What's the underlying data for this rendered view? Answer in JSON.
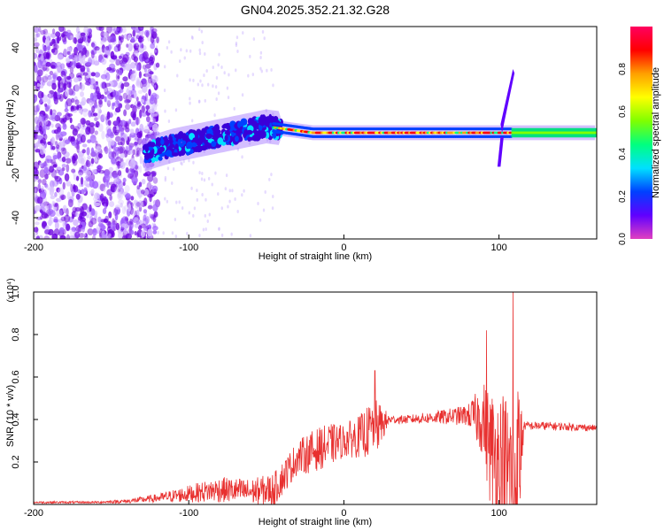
{
  "title": "GN04.2025.352.21.32.G28",
  "colors": {
    "snr_line": "#e8302f",
    "colorbar_stops": [
      "#e040c0",
      "#6000ff",
      "#0040ff",
      "#00e0ff",
      "#00ff80",
      "#80ff00",
      "#ffff00",
      "#ffa000",
      "#ff0000",
      "#ff0060"
    ]
  },
  "chart_data": [
    {
      "type": "heatmap",
      "name": "spectrogram",
      "title": "GN04.2025.352.21.32.G28",
      "xlabel": "Height of straight line (km)",
      "ylabel": "Frequency (Hz)",
      "xlim": [
        -200,
        163
      ],
      "ylim": [
        -50,
        50
      ],
      "xticks": [
        "-200",
        "-100",
        "0",
        "100"
      ],
      "yticks": [
        "-40",
        "-20",
        "0",
        "20",
        "40"
      ],
      "colorbar": {
        "label": "Normalized spectral amplitude",
        "range": [
          0,
          1
        ],
        "ticks": [
          "0.0",
          "0.2",
          "0.4",
          "0.6",
          "0.8"
        ]
      },
      "ridge": {
        "x": [
          -128,
          -110,
          -90,
          -70,
          -50,
          -40,
          -30,
          -20,
          0,
          20,
          40,
          60,
          80,
          100,
          110,
          163
        ],
        "freq": [
          -10,
          -6,
          -3,
          0,
          3,
          2,
          1,
          0,
          0,
          0,
          0,
          0,
          0,
          0,
          0,
          0
        ]
      },
      "regions": [
        {
          "name": "noise",
          "x_range": [
            -200,
            -125
          ],
          "description_level": "low"
        },
        {
          "name": "trend",
          "x_range": [
            -125,
            -40
          ],
          "description_level": "medium"
        },
        {
          "name": "ridge",
          "x_range": [
            -40,
            105
          ],
          "description_level": "high"
        },
        {
          "name": "tail",
          "x_range": [
            105,
            163
          ],
          "description_level": "medium"
        }
      ]
    },
    {
      "type": "line",
      "name": "snr",
      "xlabel": "Height of straight line (km)",
      "ylabel": "SNR (10 * v/v)",
      "multiplier_label": "(x10⁴)",
      "xlim": [
        -200,
        163
      ],
      "ylim": [
        0,
        1.0
      ],
      "xticks": [
        "-200",
        "-100",
        "0",
        "100"
      ],
      "yticks": [
        "0.2",
        "0.4",
        "0.6",
        "0.8",
        "1.0"
      ],
      "envelope": {
        "x": [
          -200,
          -160,
          -140,
          -120,
          -100,
          -80,
          -60,
          -45,
          -30,
          -20,
          -10,
          0,
          10,
          20,
          25,
          30,
          40,
          60,
          80,
          90,
          95,
          100,
          105,
          110,
          113,
          116,
          130,
          163
        ],
        "base": [
          0.01,
          0.01,
          0.015,
          0.03,
          0.05,
          0.07,
          0.06,
          0.07,
          0.22,
          0.25,
          0.28,
          0.3,
          0.32,
          0.36,
          0.38,
          0.4,
          0.4,
          0.41,
          0.42,
          0.4,
          0.25,
          0.2,
          0.15,
          0.1,
          0.2,
          0.37,
          0.37,
          0.36
        ],
        "amp": [
          0.005,
          0.005,
          0.01,
          0.02,
          0.04,
          0.06,
          0.06,
          0.08,
          0.08,
          0.1,
          0.1,
          0.08,
          0.1,
          0.14,
          0.08,
          0.02,
          0.02,
          0.03,
          0.05,
          0.18,
          0.3,
          0.35,
          0.4,
          0.45,
          0.4,
          0.02,
          0.02,
          0.015
        ]
      },
      "peaks": [
        {
          "x": 20,
          "y": 0.63
        },
        {
          "x": 92,
          "y": 0.82
        },
        {
          "x": 109,
          "y": 1.0
        }
      ]
    }
  ]
}
